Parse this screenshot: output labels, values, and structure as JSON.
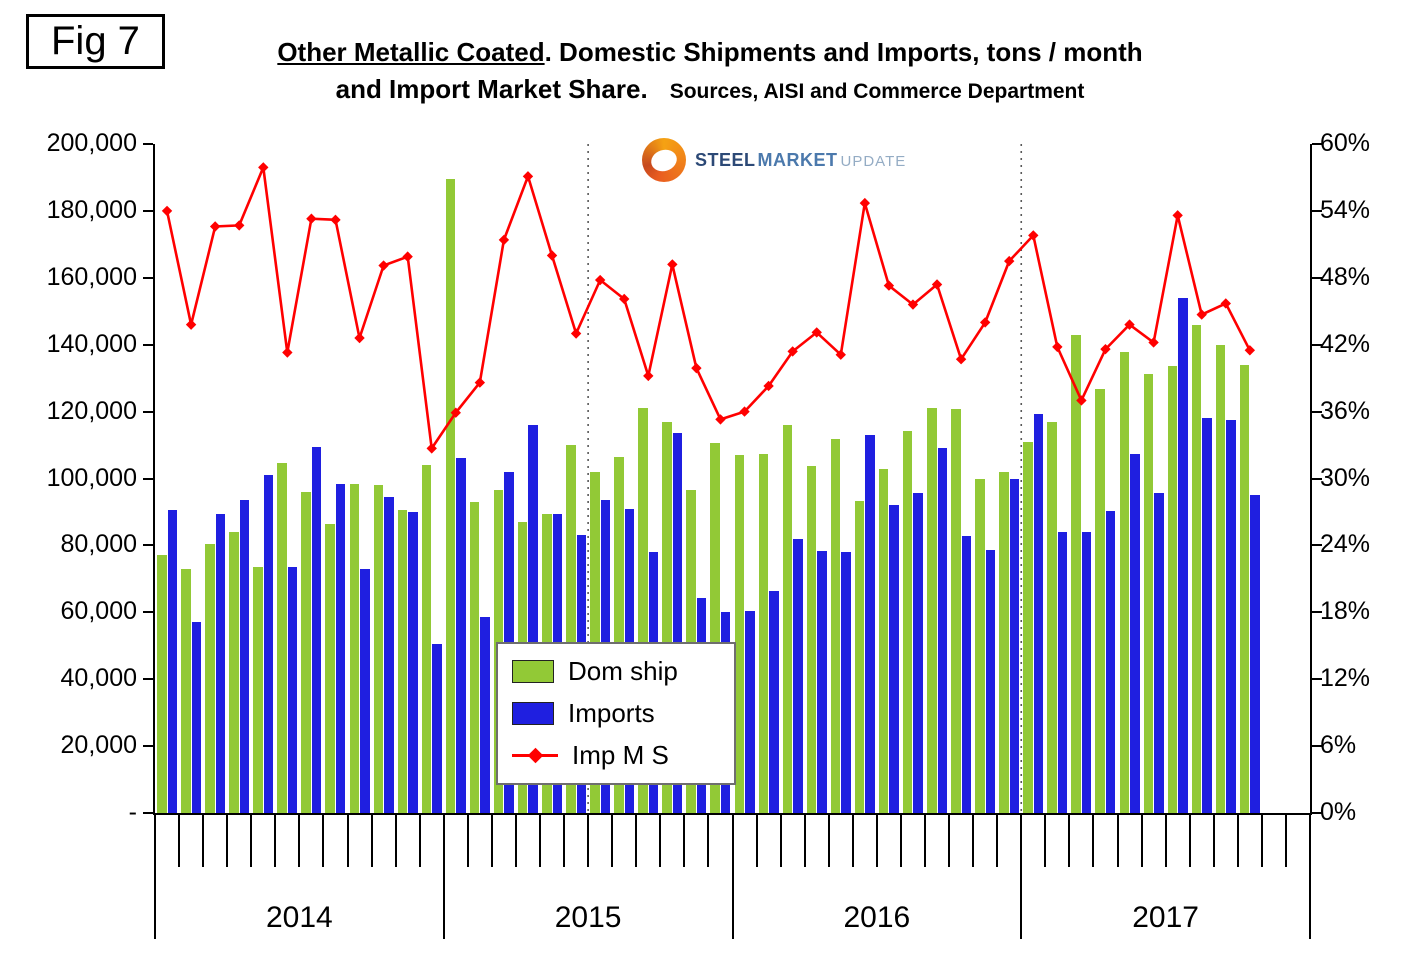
{
  "fig_label": "Fig 7",
  "title": {
    "underlined": "Other Metallic Coated",
    "line1_rest": ". Domestic Shipments and Imports, tons / month",
    "line2_main": "and Import Market Share.",
    "line2_sources": "Sources, AISI and Commerce Department"
  },
  "watermark": {
    "steel": "STEEL",
    "market": "MARKET",
    "update": "UPDATE"
  },
  "legend": {
    "dom": "Dom ship",
    "imports": "Imports",
    "ms": "Imp M S"
  },
  "axes": {
    "left_ticks": [
      "200,000",
      "180,000",
      "160,000",
      "140,000",
      "120,000",
      "100,000",
      "80,000",
      "60,000",
      "40,000",
      "20,000",
      "-"
    ],
    "right_ticks": [
      "60%",
      "54%",
      "48%",
      "42%",
      "36%",
      "30%",
      "24%",
      "18%",
      "12%",
      "6%",
      "0%"
    ],
    "years": [
      "2014",
      "2015",
      "2016",
      "2017"
    ]
  },
  "colors": {
    "dom_ship": "#92C936",
    "imports": "#1F1FE0",
    "import_share_line": "#FF0000",
    "separator": "#595959",
    "axis": "#000000"
  },
  "chart_data": {
    "type": "combo-bar-line",
    "title": "Other Metallic Coated. Domestic Shipments and Imports, tons / month and Import Market Share.",
    "sources": "Sources, AISI and Commerce Department",
    "categories": [
      "2014-01",
      "2014-02",
      "2014-03",
      "2014-04",
      "2014-05",
      "2014-06",
      "2014-07",
      "2014-08",
      "2014-09",
      "2014-10",
      "2014-11",
      "2014-12",
      "2015-01",
      "2015-02",
      "2015-03",
      "2015-04",
      "2015-05",
      "2015-06",
      "2015-07",
      "2015-08",
      "2015-09",
      "2015-10",
      "2015-11",
      "2015-12",
      "2016-01",
      "2016-02",
      "2016-03",
      "2016-04",
      "2016-05",
      "2016-06",
      "2016-07",
      "2016-08",
      "2016-09",
      "2016-10",
      "2016-11",
      "2016-12",
      "2017-01",
      "2017-02",
      "2017-03",
      "2017-04",
      "2017-05",
      "2017-06",
      "2017-07",
      "2017-08",
      "2017-09",
      "2017-10",
      "2017-11",
      "2017-12"
    ],
    "series": [
      {
        "name": "Dom ship",
        "type": "bar",
        "axis": "left",
        "values": [
          77000,
          73000,
          80500,
          84000,
          73500,
          104500,
          96000,
          86500,
          98500,
          98000,
          90500,
          104000,
          189500,
          93000,
          96500,
          87000,
          89500,
          110000,
          102000,
          106500,
          121000,
          117000,
          96700,
          110500,
          107000,
          107200,
          116000,
          103600,
          111900,
          93400,
          102700,
          114100,
          121200,
          120700,
          100000,
          102000,
          111000,
          117000,
          142800,
          126900,
          137800,
          131200,
          133500,
          145800,
          139800,
          134000,
          null,
          null
        ]
      },
      {
        "name": "Imports",
        "type": "bar",
        "axis": "left",
        "values": [
          90500,
          57000,
          89500,
          93500,
          101000,
          73500,
          109500,
          98500,
          73000,
          94500,
          90000,
          50500,
          106000,
          58500,
          102000,
          116000,
          89500,
          83000,
          93500,
          91000,
          78000,
          113500,
          64300,
          60200,
          60300,
          66500,
          82000,
          78400,
          78000,
          113000,
          92000,
          95600,
          109000,
          82800,
          78600,
          99800,
          119300,
          84000,
          84000,
          90400,
          107300,
          95700,
          154000,
          118000,
          117600,
          95000,
          null,
          null
        ]
      },
      {
        "name": "Imp M S",
        "type": "line",
        "axis": "right",
        "unit": "%",
        "values": [
          54.0,
          43.8,
          52.6,
          52.7,
          57.9,
          41.3,
          53.3,
          53.2,
          42.6,
          49.1,
          49.9,
          32.7,
          35.9,
          38.6,
          51.4,
          57.1,
          50.0,
          43.0,
          47.8,
          46.1,
          39.2,
          49.2,
          39.9,
          35.3,
          36.0,
          38.3,
          41.4,
          43.1,
          41.1,
          54.7,
          47.3,
          45.6,
          47.4,
          40.7,
          44.0,
          49.5,
          51.8,
          41.8,
          37.0,
          41.6,
          43.8,
          42.2,
          53.6,
          44.7,
          45.7,
          41.5,
          null,
          null
        ]
      }
    ],
    "left_axis": {
      "min": 0,
      "max": 200000,
      "step": 20000
    },
    "right_axis": {
      "min": 0,
      "max": 60,
      "step": 6,
      "unit": "%"
    },
    "grid": false,
    "legend_position": "inside-lower-left",
    "separator_lines_at_month_index": [
      18,
      36
    ]
  }
}
